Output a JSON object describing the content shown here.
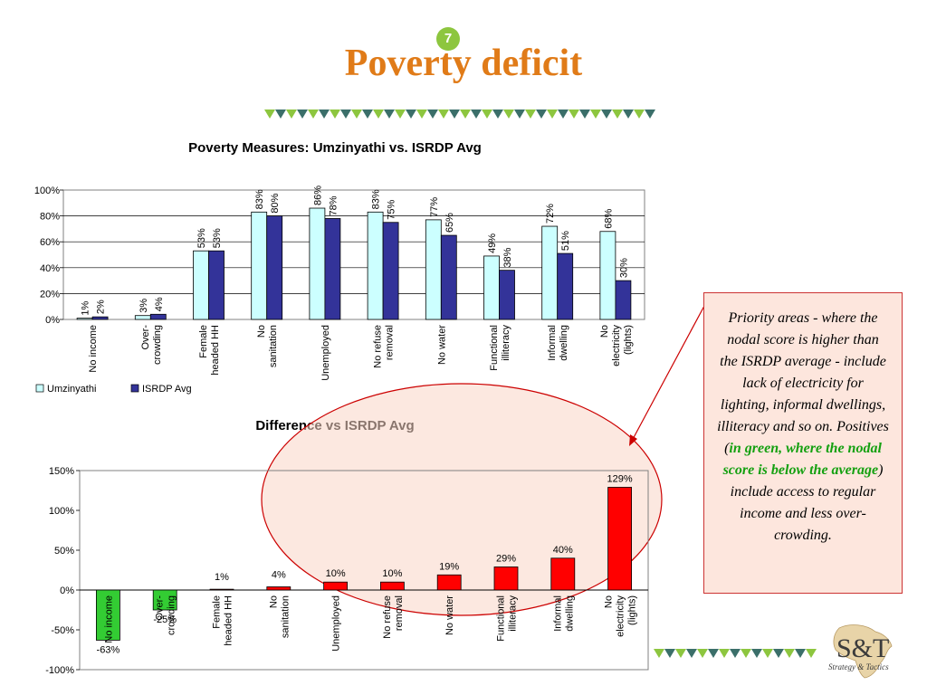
{
  "slide": {
    "number": "7",
    "title": "Poverty deficit",
    "accent_color": "#e07b18",
    "badge_color": "#8dc63f"
  },
  "chart_data": [
    {
      "type": "bar",
      "title": "Poverty Measures: Umzinyathi vs. ISRDP Avg",
      "categories": [
        [
          "No income"
        ],
        [
          "Over-",
          "crowding"
        ],
        [
          "Female",
          "headed HH"
        ],
        [
          "No",
          "sanitation"
        ],
        [
          "Unemployed"
        ],
        [
          "No refuse",
          "removal"
        ],
        [
          "No water"
        ],
        [
          "Functional",
          "illiteracy"
        ],
        [
          "Informal",
          "dwelling"
        ],
        [
          "No",
          "electricity",
          "(lights)"
        ]
      ],
      "series": [
        {
          "name": "Umzinyathi",
          "color": "#ccffff",
          "values": [
            1,
            3,
            53,
            83,
            86,
            83,
            77,
            49,
            72,
            68
          ],
          "labels": [
            "1%",
            "3%",
            "53%",
            "83%",
            "86%",
            "83%",
            "77%",
            "49%",
            "72%",
            "68%"
          ]
        },
        {
          "name": "ISRDP Avg",
          "color": "#333399",
          "values": [
            2,
            4,
            53,
            80,
            78,
            75,
            65,
            38,
            51,
            30
          ],
          "labels": [
            "2%",
            "4%",
            "53%",
            "80%",
            "78%",
            "75%",
            "65%",
            "38%",
            "51%",
            "30%"
          ]
        }
      ],
      "ylim": [
        0,
        100
      ],
      "ticks": [
        "0%",
        "20%",
        "40%",
        "60%",
        "80%",
        "100%"
      ],
      "grid": true,
      "legend": "bottom-left"
    },
    {
      "type": "bar",
      "title": "Difference vs ISRDP Avg",
      "categories": [
        [
          "No income"
        ],
        [
          "Over-",
          "crowding"
        ],
        [
          "Female",
          "headed HH"
        ],
        [
          "No",
          "sanitation"
        ],
        [
          "Unemployed"
        ],
        [
          "No refuse",
          "removal"
        ],
        [
          "No water"
        ],
        [
          "Functional",
          "illiteracy"
        ],
        [
          "Informal",
          "dwelling"
        ],
        [
          "No",
          "electricity",
          "(lights)"
        ]
      ],
      "values": [
        -63,
        -25,
        1,
        4,
        10,
        10,
        19,
        29,
        40,
        129
      ],
      "labels": [
        "-63%",
        "-25%",
        "1%",
        "4%",
        "10%",
        "10%",
        "19%",
        "29%",
        "40%",
        "129%"
      ],
      "positive_color": "#ff0000",
      "negative_color": "#33cc33",
      "ylim": [
        -100,
        150
      ],
      "ticks": [
        "-100%",
        "-50%",
        "0%",
        "50%",
        "100%",
        "150%"
      ],
      "grid": false
    }
  ],
  "callout": {
    "text_before": "Priority areas - where the nodal score is higher than the ISRDP average - include lack of  electricity for lighting, informal dwellings, illiteracy and so on. Positives (",
    "text_green": "in green, where the nodal score is below the average",
    "text_after": ") include access to regular income and less over-crowding."
  },
  "logo": {
    "letters": "S&T",
    "tagline": "Strategy & Tactics"
  }
}
